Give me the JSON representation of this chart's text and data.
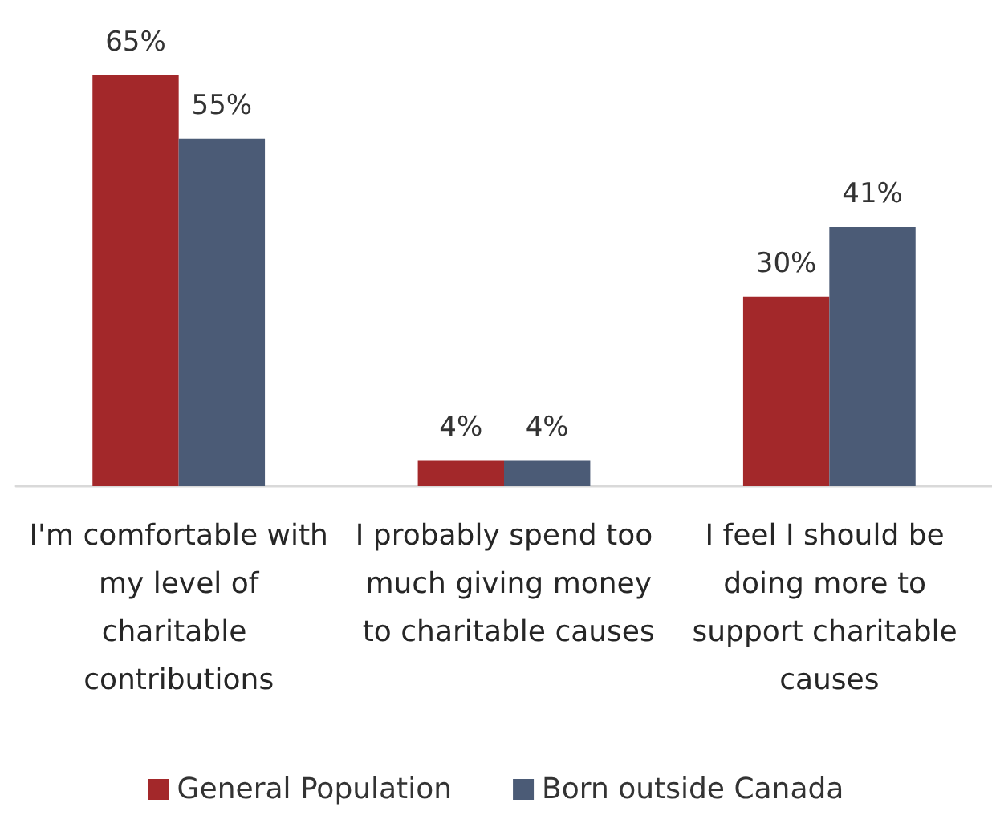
{
  "chart_data": {
    "type": "bar",
    "categories": [
      "I'm comfortable with my level of charitable contributions",
      "I probably spend too much giving money to charitable causes",
      "I feel I should be doing more to support charitable causes"
    ],
    "series": [
      {
        "name": "General Population",
        "color": "#a3282a",
        "values": [
          65,
          4,
          30
        ],
        "value_labels": [
          "65%",
          "4%",
          "30%"
        ]
      },
      {
        "name": "Born outside Canada",
        "color": "#4b5b76",
        "values": [
          55,
          4,
          41
        ],
        "value_labels": [
          "55%",
          "4%",
          "41%"
        ]
      }
    ],
    "legend": "bottom"
  }
}
